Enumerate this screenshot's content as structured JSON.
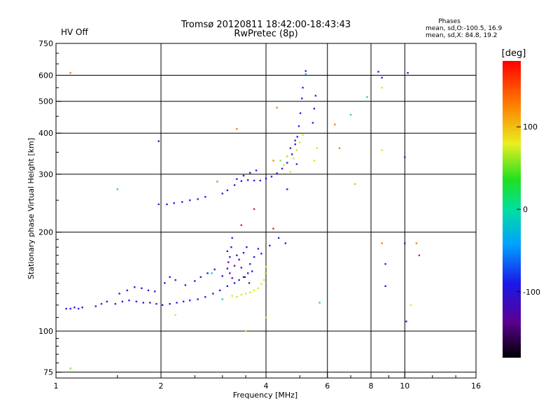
{
  "chart_data": {
    "type": "scatter",
    "title": "Tromsø 20120811 18:42:00-18:43:43",
    "subtitle": "RwPretec (8p)",
    "status_label": "HV Off",
    "status_color": "#cc0000",
    "phases_title": "Phases",
    "phases_line1": "mean, sd,O:-100.5, 16.9",
    "phases_line2": "mean, sd,X:  84.8, 19.2",
    "xlabel": "Frequency [MHz]",
    "ylabel": "Stationary phase Virtual Height [km]",
    "x_scale": "log",
    "y_scale": "log",
    "xlim": [
      1,
      16
    ],
    "ylim": [
      72,
      750
    ],
    "x_ticks": [
      1,
      2,
      4,
      6,
      8,
      10,
      16
    ],
    "x_ticks_labels": [
      "1",
      "2",
      "4",
      "6",
      "8",
      "10",
      "16"
    ],
    "y_ticks": [
      75,
      100,
      200,
      300,
      400,
      500,
      600,
      750
    ],
    "y_ticks_labels": [
      "75",
      "100",
      "200",
      "300",
      "400",
      "500",
      "600",
      "750"
    ],
    "grid": true,
    "colorbar": {
      "label": "[deg]",
      "range": [
        -180,
        180
      ],
      "ticks": [
        100,
        0,
        -100
      ],
      "ticks_labels": [
        "100",
        "0",
        "-100"
      ]
    },
    "series": [
      {
        "color": "#2a1fe0",
        "values": [
          [
            1.07,
            117
          ],
          [
            1.1,
            117
          ],
          [
            1.13,
            118
          ],
          [
            1.16,
            117
          ],
          [
            1.19,
            118
          ],
          [
            1.3,
            119
          ],
          [
            1.35,
            121
          ],
          [
            1.4,
            123
          ],
          [
            1.48,
            121
          ],
          [
            1.55,
            123
          ],
          [
            1.62,
            124
          ],
          [
            1.7,
            123
          ],
          [
            1.78,
            122
          ],
          [
            1.86,
            122
          ],
          [
            1.94,
            121
          ],
          [
            2.02,
            120
          ],
          [
            2.12,
            121
          ],
          [
            2.22,
            122
          ],
          [
            2.32,
            123
          ],
          [
            2.42,
            124
          ],
          [
            2.55,
            125
          ],
          [
            2.68,
            127
          ],
          [
            2.82,
            130
          ],
          [
            2.95,
            133
          ],
          [
            3.1,
            137
          ],
          [
            3.25,
            140
          ],
          [
            3.35,
            143
          ],
          [
            3.45,
            146
          ],
          [
            3.55,
            150
          ],
          [
            3.65,
            152
          ],
          [
            1.52,
            130
          ],
          [
            1.6,
            133
          ],
          [
            1.68,
            136
          ],
          [
            1.76,
            135
          ],
          [
            1.84,
            133
          ],
          [
            1.92,
            132
          ],
          [
            2.05,
            140
          ],
          [
            2.12,
            146
          ],
          [
            2.2,
            143
          ],
          [
            2.35,
            138
          ],
          [
            2.5,
            142
          ],
          [
            2.6,
            146
          ],
          [
            2.72,
            150
          ],
          [
            2.85,
            154
          ],
          [
            3.0,
            147
          ],
          [
            3.1,
            155
          ],
          [
            3.15,
            168
          ],
          [
            3.18,
            180
          ],
          [
            3.2,
            192
          ],
          [
            3.35,
            165
          ],
          [
            3.45,
            173
          ],
          [
            3.52,
            180
          ],
          [
            3.7,
            168
          ],
          [
            3.8,
            178
          ],
          [
            3.88,
            172
          ],
          [
            4.1,
            182
          ],
          [
            4.35,
            192
          ],
          [
            4.55,
            185
          ],
          [
            1.97,
            243
          ],
          [
            2.08,
            243
          ],
          [
            2.18,
            245
          ],
          [
            2.3,
            247
          ],
          [
            2.42,
            250
          ],
          [
            2.55,
            252
          ],
          [
            2.68,
            256
          ],
          [
            3.0,
            262
          ],
          [
            3.1,
            268
          ],
          [
            3.25,
            278
          ],
          [
            3.4,
            286
          ],
          [
            3.55,
            288
          ],
          [
            3.7,
            287
          ],
          [
            3.85,
            287
          ],
          [
            4.0,
            291
          ],
          [
            4.15,
            295
          ],
          [
            4.3,
            302
          ],
          [
            4.45,
            312
          ],
          [
            4.6,
            325
          ],
          [
            4.75,
            345
          ],
          [
            4.85,
            370
          ],
          [
            4.92,
            390
          ],
          [
            4.97,
            420
          ],
          [
            5.02,
            460
          ],
          [
            5.07,
            510
          ],
          [
            5.1,
            550
          ],
          [
            5.5,
            475
          ],
          [
            5.55,
            520
          ],
          [
            5.45,
            430
          ],
          [
            3.3,
            290
          ],
          [
            3.45,
            297
          ],
          [
            3.6,
            303
          ],
          [
            3.75,
            308
          ],
          [
            1.97,
            378
          ],
          [
            5.2,
            618
          ],
          [
            10.0,
            338
          ],
          [
            8.4,
            615
          ],
          [
            10.2,
            610
          ],
          [
            8.6,
            590
          ],
          [
            8.8,
            160
          ],
          [
            8.8,
            137
          ],
          [
            10.0,
            185
          ],
          [
            10.1,
            107
          ],
          [
            4.6,
            270
          ],
          [
            3.6,
            160
          ]
        ]
      },
      {
        "color": "#6a0fa0",
        "values": [
          [
            3.1,
            175
          ],
          [
            3.12,
            162
          ],
          [
            3.15,
            150
          ],
          [
            3.2,
            145
          ],
          [
            3.25,
            158
          ],
          [
            3.3,
            170
          ],
          [
            3.4,
            156
          ],
          [
            3.48,
            146
          ],
          [
            3.58,
            140
          ],
          [
            4.6,
            340
          ],
          [
            4.7,
            360
          ],
          [
            4.85,
            380
          ],
          [
            4.9,
            322
          ]
        ]
      },
      {
        "color": "#d8e81a",
        "values": [
          [
            3.2,
            128
          ],
          [
            3.3,
            127
          ],
          [
            3.4,
            129
          ],
          [
            3.5,
            130
          ],
          [
            3.6,
            131
          ],
          [
            3.7,
            133
          ],
          [
            3.8,
            135
          ],
          [
            3.88,
            139
          ],
          [
            3.95,
            143
          ],
          [
            3.98,
            150
          ],
          [
            4.0,
            157
          ],
          [
            4.5,
            320
          ],
          [
            4.6,
            340
          ],
          [
            4.7,
            305
          ],
          [
            4.8,
            335
          ],
          [
            4.9,
            355
          ],
          [
            5.0,
            375
          ],
          [
            5.1,
            395
          ],
          [
            5.5,
            330
          ],
          [
            5.6,
            360
          ],
          [
            2.2,
            112
          ],
          [
            8.6,
            550
          ],
          [
            8.6,
            355
          ],
          [
            10.4,
            120
          ],
          [
            4.0,
            110
          ],
          [
            3.5,
            100
          ]
        ]
      },
      {
        "color": "#28c8c8",
        "values": [
          [
            1.5,
            270
          ],
          [
            5.2,
            605
          ],
          [
            7.0,
            455
          ],
          [
            7.8,
            515
          ],
          [
            5.7,
            122
          ],
          [
            3.0,
            125
          ],
          [
            2.8,
            150
          ]
        ]
      },
      {
        "color": "#f08020",
        "values": [
          [
            1.1,
            610
          ],
          [
            3.3,
            412
          ],
          [
            4.2,
            330
          ],
          [
            4.3,
            478
          ],
          [
            8.6,
            185
          ],
          [
            10.8,
            185
          ],
          [
            2.9,
            285
          ],
          [
            6.3,
            425
          ],
          [
            6.5,
            360
          ]
        ]
      },
      {
        "color": "#e02020",
        "values": [
          [
            3.7,
            235
          ],
          [
            4.2,
            205
          ],
          [
            11.0,
            170
          ],
          [
            3.4,
            210
          ]
        ]
      },
      {
        "color": "#80e050",
        "values": [
          [
            4.4,
            330
          ],
          [
            1.1,
            77
          ],
          [
            7.2,
            280
          ]
        ]
      }
    ]
  }
}
